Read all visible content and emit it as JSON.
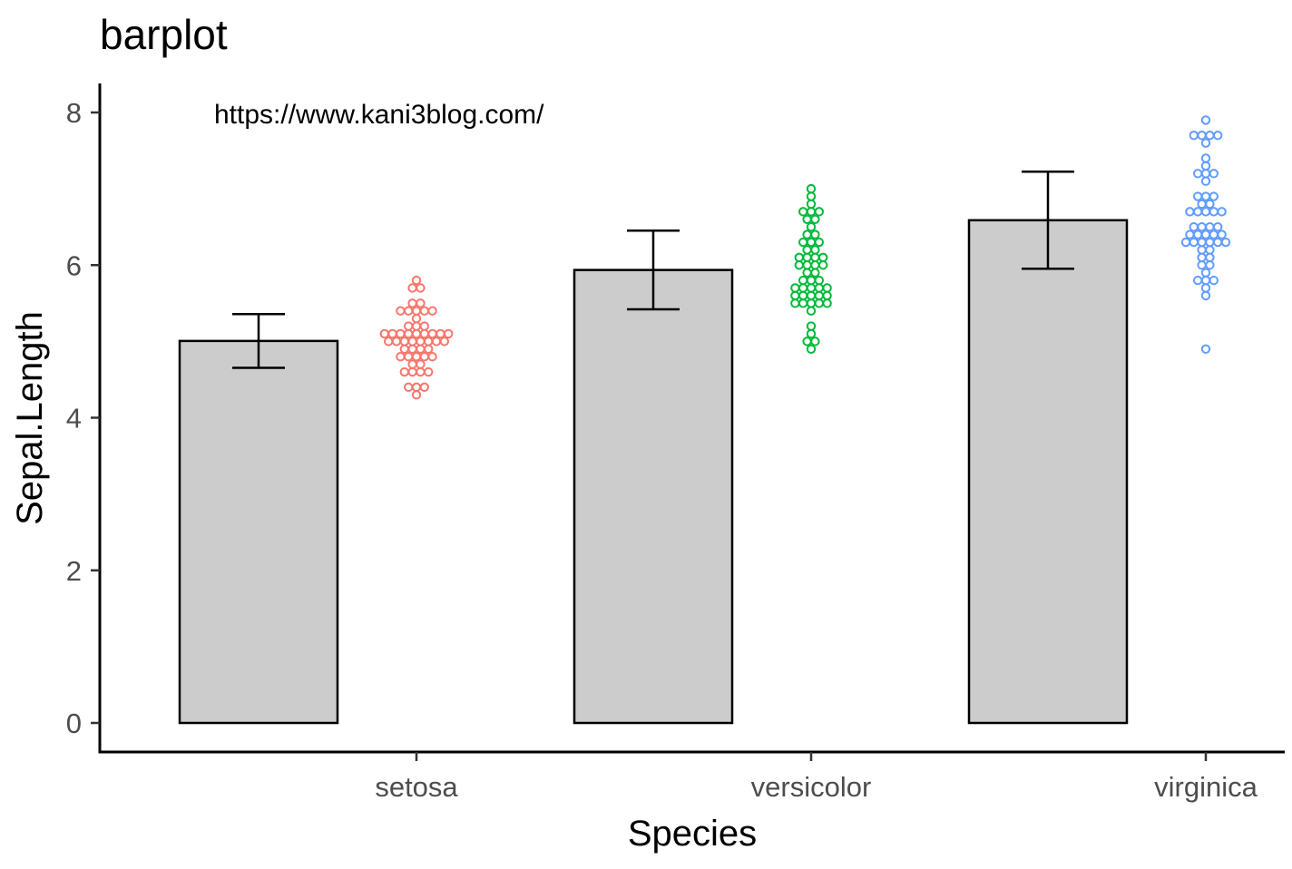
{
  "chart_data": {
    "type": "bar",
    "title": "barplot",
    "annotation": "https://www.kani3blog.com/",
    "xlabel": "Species",
    "ylabel": "Sepal.Length",
    "categories": [
      "setosa",
      "versicolor",
      "virginica"
    ],
    "ylim": [
      -0.35,
      8.4
    ],
    "yticks": [
      0,
      2,
      4,
      6,
      8
    ],
    "grid": false,
    "legend": "none",
    "bars": {
      "fill": "#cccccc",
      "values": [
        5.006,
        5.936,
        6.588
      ],
      "error_low": [
        4.654,
        5.42,
        5.952
      ],
      "error_high": [
        5.358,
        6.452,
        7.224
      ]
    },
    "dot_colors": [
      "#f8766d",
      "#00ba38",
      "#619cff"
    ],
    "dot_bins": [
      [
        [
          4.3,
          1
        ],
        [
          4.4,
          3
        ],
        [
          4.6,
          4
        ],
        [
          4.7,
          2
        ],
        [
          4.8,
          5
        ],
        [
          4.9,
          4
        ],
        [
          5.0,
          8
        ],
        [
          5.1,
          9
        ],
        [
          5.2,
          3
        ],
        [
          5.3,
          1
        ],
        [
          5.4,
          5
        ],
        [
          5.5,
          2
        ],
        [
          5.7,
          2
        ],
        [
          5.8,
          1
        ]
      ],
      [
        [
          4.9,
          1
        ],
        [
          5.0,
          2
        ],
        [
          5.1,
          1
        ],
        [
          5.2,
          1
        ],
        [
          5.4,
          1
        ],
        [
          5.5,
          5
        ],
        [
          5.6,
          5
        ],
        [
          5.7,
          5
        ],
        [
          5.8,
          3
        ],
        [
          5.9,
          2
        ],
        [
          6.0,
          4
        ],
        [
          6.1,
          4
        ],
        [
          6.2,
          2
        ],
        [
          6.3,
          3
        ],
        [
          6.4,
          2
        ],
        [
          6.5,
          1
        ],
        [
          6.6,
          2
        ],
        [
          6.7,
          3
        ],
        [
          6.8,
          1
        ],
        [
          6.9,
          1
        ],
        [
          7.0,
          1
        ]
      ],
      [
        [
          4.9,
          1
        ],
        [
          5.6,
          1
        ],
        [
          5.7,
          1
        ],
        [
          5.8,
          3
        ],
        [
          5.9,
          1
        ],
        [
          6.0,
          2
        ],
        [
          6.1,
          2
        ],
        [
          6.2,
          2
        ],
        [
          6.3,
          6
        ],
        [
          6.4,
          5
        ],
        [
          6.5,
          4
        ],
        [
          6.7,
          5
        ],
        [
          6.8,
          2
        ],
        [
          6.9,
          3
        ],
        [
          7.1,
          1
        ],
        [
          7.2,
          3
        ],
        [
          7.3,
          1
        ],
        [
          7.4,
          1
        ],
        [
          7.6,
          1
        ],
        [
          7.7,
          4
        ],
        [
          7.9,
          1
        ]
      ]
    ]
  }
}
